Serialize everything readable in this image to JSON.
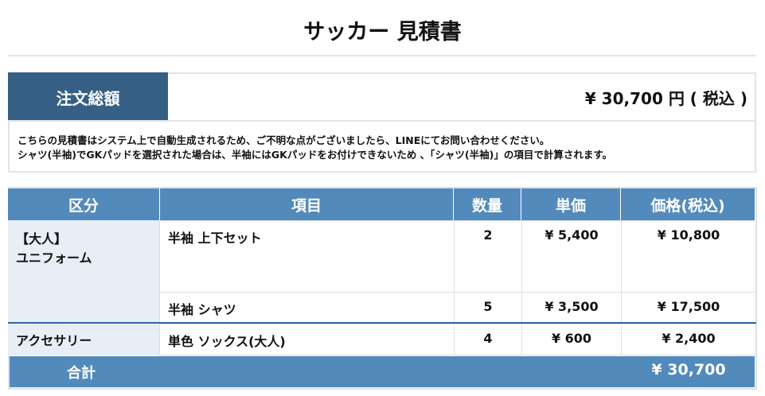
{
  "title": "サッカー 見積書",
  "summary": {
    "label": "注文総額",
    "value": "¥ 30,700 円 ( 税込 )"
  },
  "notes": [
    "こちらの見積書はシステム上で自動生成されるため、ご不明な点がございましたら、LINEにてお問い合わせください。",
    "シャツ(半袖)でGKパッドを選択された場合は、半袖にはGKパッドをお付けできないため 、「シャツ(半袖)」の項目で計算されます。"
  ],
  "table": {
    "headers": [
      "区分",
      "項目",
      "数量",
      "単価",
      "価格(税込)"
    ],
    "groups": [
      {
        "category": [
          "【大人】",
          "ユニフォーム"
        ],
        "rows": [
          {
            "item": "半袖 上下セット",
            "qty": "2",
            "unit": "¥ 5,400",
            "price": "¥ 10,800"
          },
          {
            "item": "半袖 シャツ",
            "qty": "5",
            "unit": "¥ 3,500",
            "price": "¥ 17,500"
          }
        ]
      },
      {
        "category": [
          "アクセサリー"
        ],
        "rows": [
          {
            "item": "単色 ソックス(大人)",
            "qty": "4",
            "unit": "¥ 600",
            "price": "¥ 2,400"
          }
        ]
      }
    ],
    "total": {
      "label": "合計",
      "value": "¥ 30,700"
    }
  },
  "colors": {
    "header": "#528abb",
    "summary_label": "#355f84",
    "category_bg": "#e8eef5"
  }
}
